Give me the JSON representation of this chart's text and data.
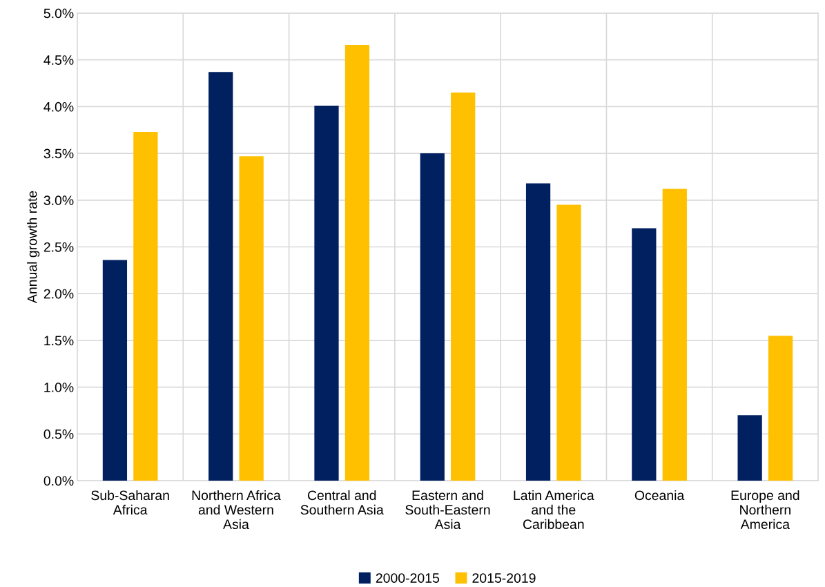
{
  "chart_data": {
    "type": "bar",
    "ylabel": "Annual growth rate",
    "categories": [
      "Sub-Saharan\nAfrica",
      "Northern Africa\nand Western\nAsia",
      "Central and\nSouthern Asia",
      "Eastern and\nSouth-Eastern\nAsia",
      "Latin America\nand the\nCaribbean",
      "Oceania",
      "Europe and\nNorthern\nAmerica"
    ],
    "series": [
      {
        "name": "2000-2015",
        "color": "#002060",
        "values": [
          2.36,
          4.37,
          4.01,
          3.5,
          3.18,
          2.7,
          0.7
        ]
      },
      {
        "name": "2015-2019",
        "color": "#ffc000",
        "values": [
          3.73,
          3.47,
          4.66,
          4.15,
          2.95,
          3.12,
          1.55
        ]
      }
    ],
    "ylim": [
      0,
      5
    ],
    "yticks": [
      {
        "value": 0,
        "label": "0.0%"
      },
      {
        "value": 0.5,
        "label": "0.5%"
      },
      {
        "value": 1,
        "label": "1.0%"
      },
      {
        "value": 1.5,
        "label": "1.5%"
      },
      {
        "value": 2,
        "label": "2.0%"
      },
      {
        "value": 2.5,
        "label": "2.5%"
      },
      {
        "value": 3,
        "label": "3.0%"
      },
      {
        "value": 3.5,
        "label": "3.5%"
      },
      {
        "value": 4,
        "label": "4.0%"
      },
      {
        "value": 4.5,
        "label": "4.5%"
      },
      {
        "value": 5,
        "label": "5.0%"
      }
    ],
    "grid": true,
    "legend": "bottom"
  }
}
